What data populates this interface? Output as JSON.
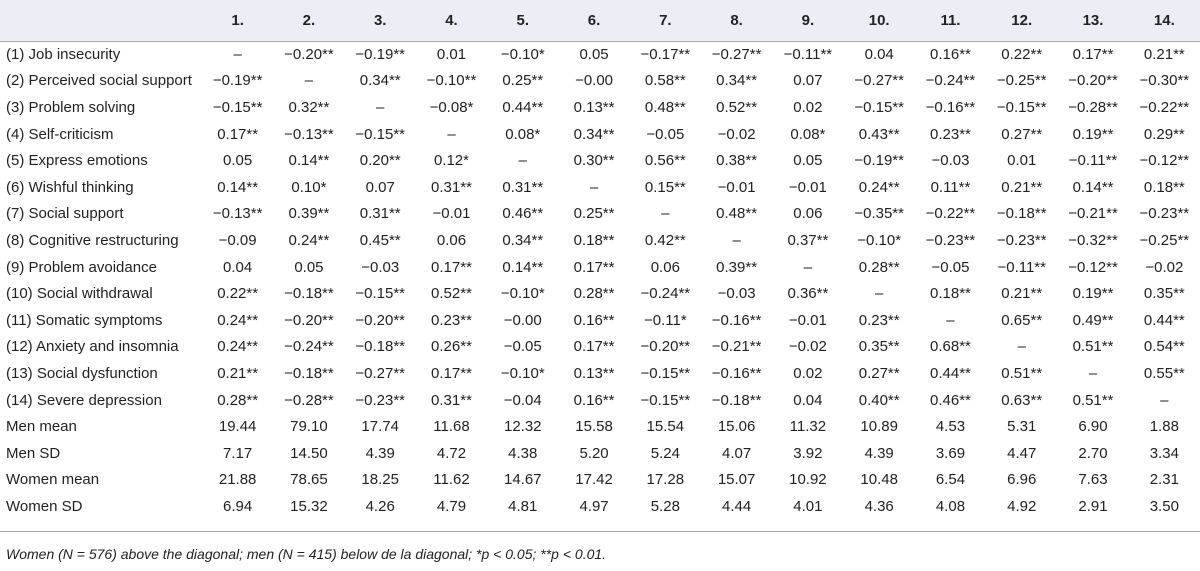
{
  "table": {
    "columns": [
      "",
      "1.",
      "2.",
      "3.",
      "4.",
      "5.",
      "6.",
      "7.",
      "8.",
      "9.",
      "10.",
      "11.",
      "12.",
      "13.",
      "14."
    ],
    "rows": [
      {
        "label": "(1) Job insecurity",
        "values": [
          "–",
          "−0.20**",
          "−0.19**",
          "0.01",
          "−0.10*",
          "0.05",
          "−0.17**",
          "−0.27**",
          "−0.11**",
          "0.04",
          "0.16**",
          "0.22**",
          "0.17**",
          "0.21**"
        ]
      },
      {
        "label": "(2) Perceived social support",
        "values": [
          "−0.19**",
          "–",
          "0.34**",
          "−0.10**",
          "0.25**",
          "−0.00",
          "0.58**",
          "0.34**",
          "0.07",
          "−0.27**",
          "−0.24**",
          "−0.25**",
          "−0.20**",
          "−0.30**"
        ]
      },
      {
        "label": "(3) Problem solving",
        "values": [
          "−0.15**",
          "0.32**",
          "–",
          "−0.08*",
          "0.44**",
          "0.13**",
          "0.48**",
          "0.52**",
          "0.02",
          "−0.15**",
          "−0.16**",
          "−0.15**",
          "−0.28**",
          "−0.22**"
        ]
      },
      {
        "label": "(4) Self-criticism",
        "values": [
          "0.17**",
          "−0.13**",
          "−0.15**",
          "–",
          "0.08*",
          "0.34**",
          "−0.05",
          "−0.02",
          "0.08*",
          "0.43**",
          "0.23**",
          "0.27**",
          "0.19**",
          "0.29**"
        ]
      },
      {
        "label": "(5) Express emotions",
        "values": [
          "0.05",
          "0.14**",
          "0.20**",
          "0.12*",
          "–",
          "0.30**",
          "0.56**",
          "0.38**",
          "0.05",
          "−0.19**",
          "−0.03",
          "0.01",
          "−0.11**",
          "−0.12**"
        ]
      },
      {
        "label": "(6) Wishful thinking",
        "values": [
          "0.14**",
          "0.10*",
          "0.07",
          "0.31**",
          "0.31**",
          "–",
          "0.15**",
          "−0.01",
          "−0.01",
          "0.24**",
          "0.11**",
          "0.21**",
          "0.14**",
          "0.18**"
        ]
      },
      {
        "label": "(7) Social support",
        "values": [
          "−0.13**",
          "0.39**",
          "0.31**",
          "−0.01",
          "0.46**",
          "0.25**",
          "–",
          "0.48**",
          "0.06",
          "−0.35**",
          "−0.22**",
          "−0.18**",
          "−0.21**",
          "−0.23**"
        ]
      },
      {
        "label": "(8) Cognitive restructuring",
        "values": [
          "−0.09",
          "0.24**",
          "0.45**",
          "0.06",
          "0.34**",
          "0.18**",
          "0.42**",
          "–",
          "0.37**",
          "−0.10*",
          "−0.23**",
          "−0.23**",
          "−0.32**",
          "−0.25**"
        ]
      },
      {
        "label": "(9) Problem avoidance",
        "values": [
          "0.04",
          "0.05",
          "−0.03",
          "0.17**",
          "0.14**",
          "0.17**",
          "0.06",
          "0.39**",
          "–",
          "0.28**",
          "−0.05",
          "−0.11**",
          "−0.12**",
          "−0.02"
        ]
      },
      {
        "label": "(10) Social withdrawal",
        "values": [
          "0.22**",
          "−0.18**",
          "−0.15**",
          "0.52**",
          "−0.10*",
          "0.28**",
          "−0.24**",
          "−0.03",
          "0.36**",
          "–",
          "0.18**",
          "0.21**",
          "0.19**",
          "0.35**"
        ]
      },
      {
        "label": "(11) Somatic symptoms",
        "values": [
          "0.24**",
          "−0.20**",
          "−0.20**",
          "0.23**",
          "−0.00",
          "0.16**",
          "−0.11*",
          "−0.16**",
          "−0.01",
          "0.23**",
          "–",
          "0.65**",
          "0.49**",
          "0.44**"
        ]
      },
      {
        "label": "(12) Anxiety and insomnia",
        "values": [
          "0.24**",
          "−0.24**",
          "−0.18**",
          "0.26**",
          "−0.05",
          "0.17**",
          "−0.20**",
          "−0.21**",
          "−0.02",
          "0.35**",
          "0.68**",
          "–",
          "0.51**",
          "0.54**"
        ]
      },
      {
        "label": "(13) Social dysfunction",
        "values": [
          "0.21**",
          "−0.18**",
          "−0.27**",
          "0.17**",
          "−0.10*",
          "0.13**",
          "−0.15**",
          "−0.16**",
          "0.02",
          "0.27**",
          "0.44**",
          "0.51**",
          "–",
          "0.55**"
        ]
      },
      {
        "label": "(14) Severe depression",
        "values": [
          "0.28**",
          "−0.28**",
          "−0.23**",
          "0.31**",
          "−0.04",
          "0.16**",
          "−0.15**",
          "−0.18**",
          "0.04",
          "0.40**",
          "0.46**",
          "0.63**",
          "0.51**",
          "–"
        ]
      },
      {
        "label": "Men mean",
        "values": [
          "19.44",
          "79.10",
          "17.74",
          "11.68",
          "12.32",
          "15.58",
          "15.54",
          "15.06",
          "11.32",
          "10.89",
          "4.53",
          "5.31",
          "6.90",
          "1.88"
        ]
      },
      {
        "label": "Men SD",
        "values": [
          "7.17",
          "14.50",
          "4.39",
          "4.72",
          "4.38",
          "5.20",
          "5.24",
          "4.07",
          "3.92",
          "4.39",
          "3.69",
          "4.47",
          "2.70",
          "3.34"
        ]
      },
      {
        "label": "Women mean",
        "values": [
          "21.88",
          "78.65",
          "18.25",
          "11.62",
          "14.67",
          "17.42",
          "17.28",
          "15.07",
          "10.92",
          "10.48",
          "6.54",
          "6.96",
          "7.63",
          "2.31"
        ]
      },
      {
        "label": "Women SD",
        "values": [
          "6.94",
          "15.32",
          "4.26",
          "4.79",
          "4.81",
          "4.97",
          "5.28",
          "4.44",
          "4.01",
          "4.36",
          "4.08",
          "4.92",
          "2.91",
          "3.50"
        ]
      }
    ]
  },
  "note": "Women (N = 576) above the diagonal; men (N = 415) below de la diagonal; *p < 0.05; **p < 0.01.",
  "colors": {
    "header_band": "#eceef5",
    "rule": "#a9a9a9",
    "text": "#222222"
  }
}
